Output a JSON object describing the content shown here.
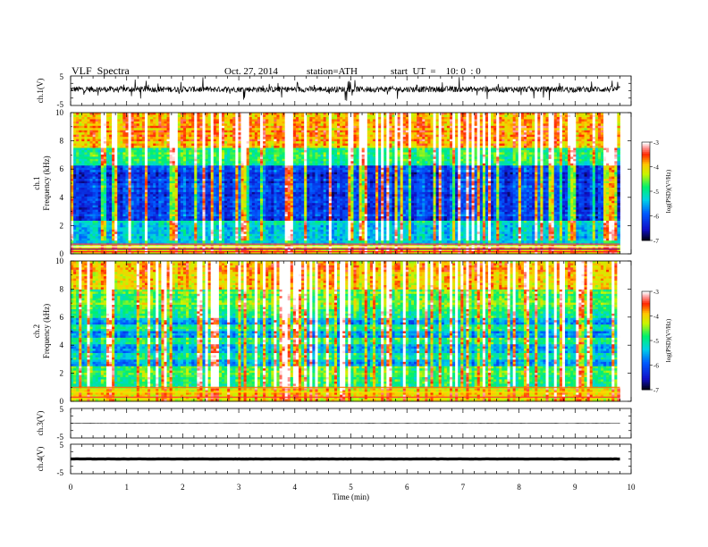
{
  "header": {
    "title": "VLF  Spectra",
    "date": "Oct. 27, 2014",
    "station": "station=ATH",
    "start": "start  UT  =    10: 0  : 0"
  },
  "chart_data": [
    {
      "type": "line",
      "panel": "ch1-waveform",
      "ylabel": "ch.1(V)",
      "ytick_labels": [
        "5",
        "-5"
      ],
      "ylim": [
        -5,
        5
      ],
      "xlim": [
        0,
        10
      ],
      "x_extent": [
        0,
        9.8
      ],
      "description_values": {
        "baseline": 0.5,
        "amplitude": 2.0
      }
    },
    {
      "type": "heatmap",
      "panel": "ch1-spectrogram",
      "ylabel_lines": [
        "ch.1",
        "Frequency  (kHz)"
      ],
      "ytick_labels": [
        "0",
        "2",
        "4",
        "6",
        "8",
        "10"
      ],
      "ylim": [
        0,
        10
      ],
      "xlim": [
        0,
        10
      ],
      "x_extent": [
        0,
        9.8
      ],
      "colorbar": {
        "label": "log(PSD)(V²/Hz)",
        "tick_labels": [
          "-3",
          "-4",
          "-5",
          "-6",
          "-7"
        ],
        "range": [
          -7,
          -3
        ],
        "colors": [
          "#000000",
          "#1010ff",
          "#00c8ff",
          "#00ff66",
          "#ffff00",
          "#ff8800",
          "#ff0000",
          "#ffaaaa",
          "#ffffff"
        ]
      }
    },
    {
      "type": "heatmap",
      "panel": "ch2-spectrogram",
      "ylabel_lines": [
        "ch.2",
        "Frequency  (kHz)"
      ],
      "ytick_labels": [
        "0",
        "2",
        "4",
        "6",
        "8",
        "10"
      ],
      "ylim": [
        0,
        10
      ],
      "xlim": [
        0,
        10
      ],
      "x_extent": [
        0,
        9.8
      ],
      "colorbar": {
        "label": "log(PSD)(V²/Hz)",
        "tick_labels": [
          "-3",
          "-4",
          "-5",
          "-6",
          "-7"
        ],
        "range": [
          -7,
          -3
        ]
      }
    },
    {
      "type": "line",
      "panel": "ch3-waveform",
      "ylabel": "ch.3(V)",
      "ytick_labels": [
        "5",
        "-5"
      ],
      "ylim": [
        -5,
        5
      ],
      "xlim": [
        0,
        10
      ],
      "x_extent": [
        0,
        9.8
      ],
      "description_values": {
        "baseline": 0.0,
        "amplitude": 0.1
      }
    },
    {
      "type": "line",
      "panel": "ch4-waveform",
      "ylabel": "ch.4(V)",
      "ytick_labels": [
        "5",
        "-5"
      ],
      "ylim": [
        -5,
        5
      ],
      "xlim": [
        0,
        10
      ],
      "x_extent": [
        0,
        9.8
      ],
      "description_values": {
        "baseline": 0.0,
        "amplitude": 0.05
      }
    }
  ],
  "xaxis": {
    "label": "Time  (min)",
    "tick_labels": [
      "0",
      "1",
      "2",
      "3",
      "4",
      "5",
      "6",
      "7",
      "8",
      "9",
      "10"
    ]
  }
}
